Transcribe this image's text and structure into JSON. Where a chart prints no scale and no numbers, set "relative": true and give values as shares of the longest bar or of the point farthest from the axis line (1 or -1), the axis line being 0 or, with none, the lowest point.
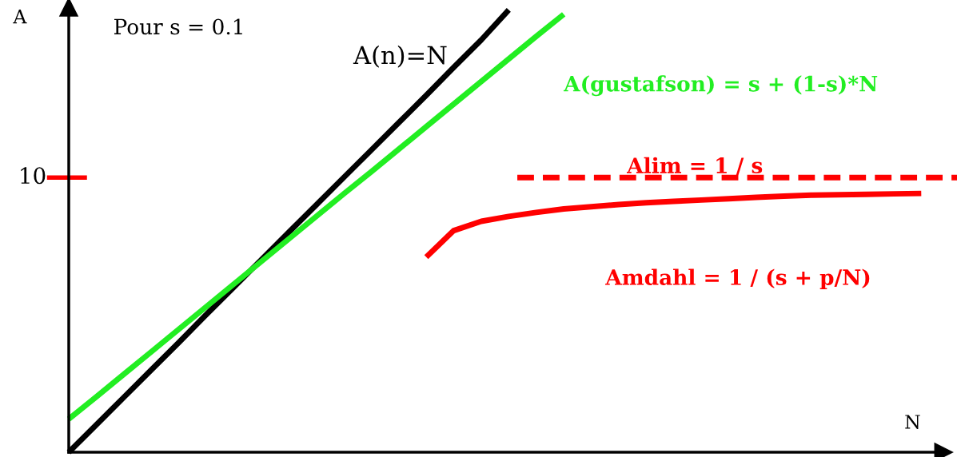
{
  "chart_data": {
    "type": "line",
    "xlabel": "N",
    "ylabel": "A",
    "relative": true,
    "categories": [
      null,
      null,
      null,
      null,
      null,
      null,
      null,
      null,
      null,
      null,
      null,
      null,
      null,
      null,
      null,
      null,
      null,
      null,
      null,
      null,
      null,
      null,
      null,
      null,
      null,
      null,
      null,
      null,
      null,
      null,
      null,
      null,
      null
    ],
    "series": [
      {
        "name": "A(n)=N",
        "color": "#000000",
        "values": [
          0,
          0.062,
          0.124,
          0.186,
          0.248,
          0.311,
          0.373,
          0.435,
          0.497,
          0.559,
          0.621,
          0.683,
          0.745,
          0.807,
          0.87,
          0.932,
          1,
          null,
          null,
          null,
          null,
          null,
          null,
          null,
          null,
          null,
          null,
          null,
          null,
          null,
          null,
          null,
          null
        ]
      },
      {
        "name": "A(gustafson) = s + (1-s)*N",
        "color": "#22ee22",
        "values": [
          0.075,
          0.125,
          0.176,
          0.227,
          0.278,
          0.329,
          0.38,
          0.431,
          0.482,
          0.533,
          0.584,
          0.634,
          0.685,
          0.736,
          0.787,
          0.838,
          0.889,
          0.94,
          0.99,
          null,
          null,
          null,
          null,
          null,
          null,
          null,
          null,
          null,
          null,
          null,
          null,
          null,
          null
        ]
      },
      {
        "name": "Amdahl = 1 / (s + p/N)",
        "color": "#ff0000",
        "values": [
          null,
          null,
          null,
          null,
          null,
          null,
          null,
          null,
          null,
          null,
          null,
          null,
          null,
          0.441,
          0.501,
          0.522,
          0.533,
          0.542,
          0.55,
          0.555,
          0.56,
          0.564,
          0.567,
          0.57,
          0.573,
          0.576,
          0.579,
          0.581,
          0.582,
          0.583,
          0.584,
          0.585,
          null
        ]
      }
    ],
    "ref_lines": [
      {
        "axis": "y",
        "value": 0.621,
        "label": "Alim = 1 / s",
        "color": "#ff0000",
        "line_style": "dashed"
      }
    ],
    "annotations": [
      "Pour s = 0.1",
      "10"
    ],
    "legend": false,
    "marker": "none",
    "line_style": "solid"
  }
}
